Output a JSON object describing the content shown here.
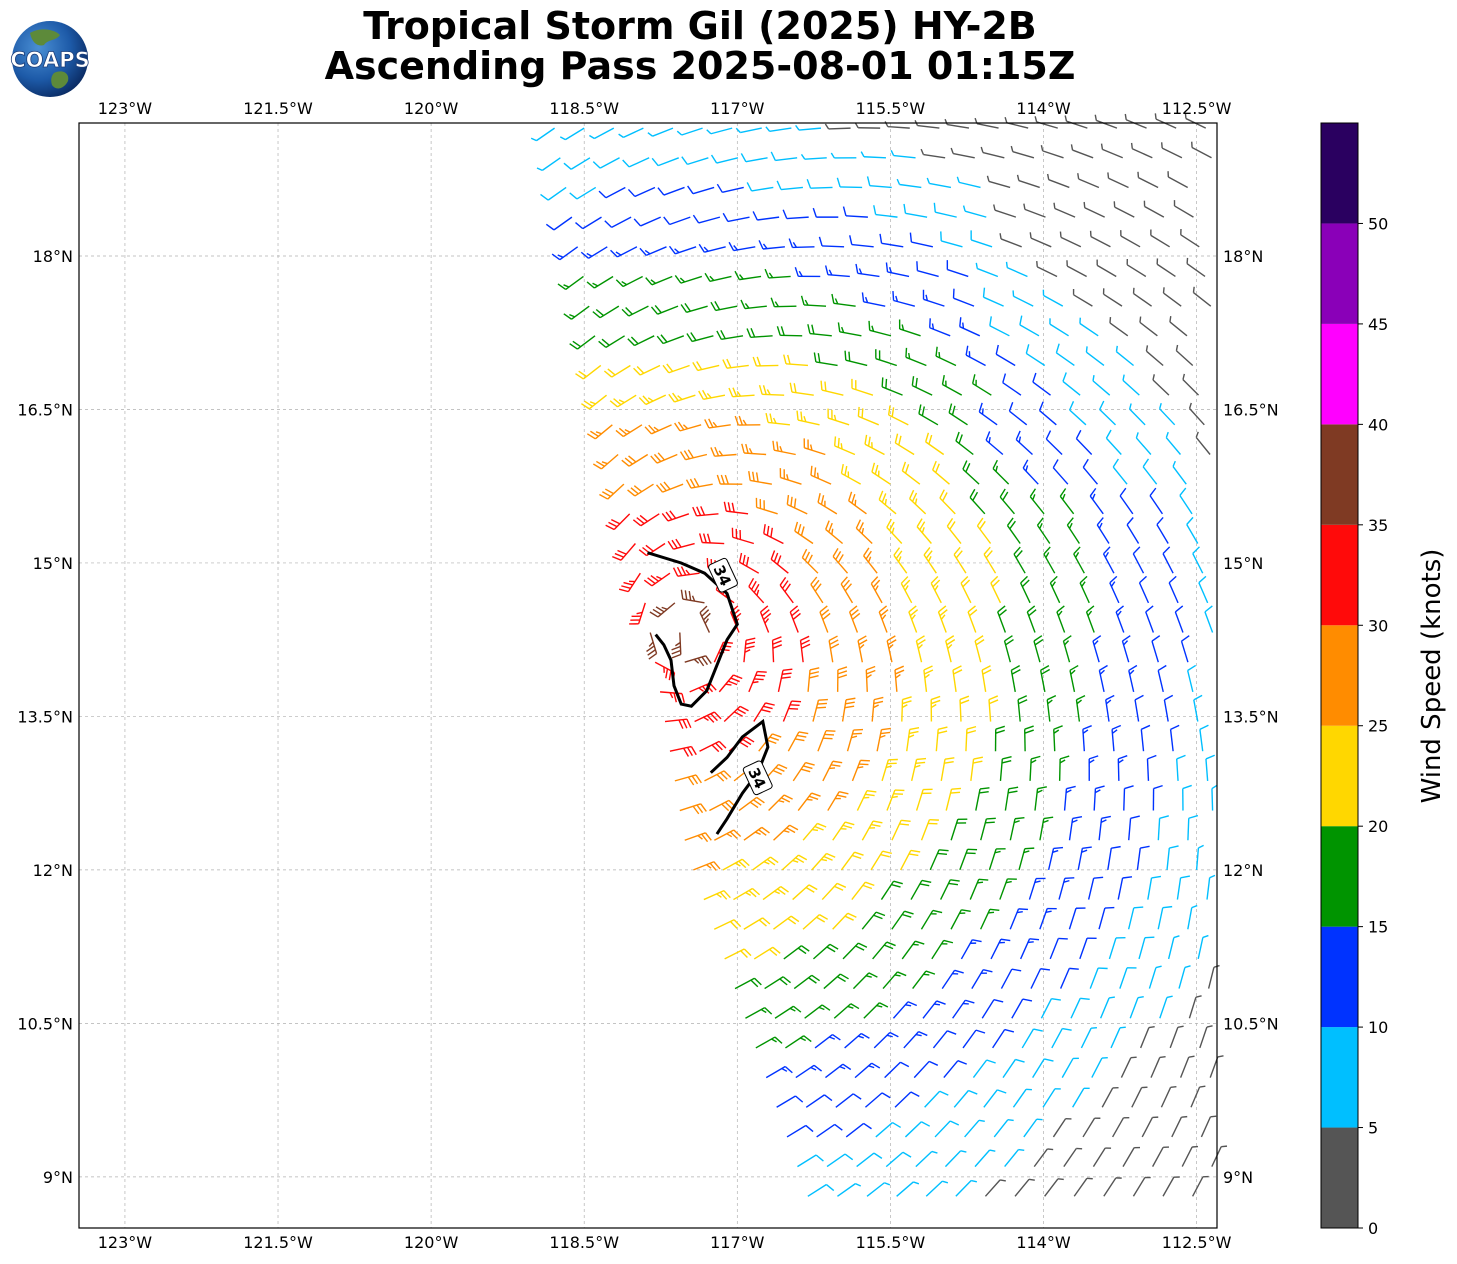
{
  "header": {
    "title_line1": "Tropical Storm Gil (2025) HY-2B",
    "title_line2": "Ascending Pass 2025-08-01 01:15Z"
  },
  "logo": {
    "text": "COAPS",
    "icon": "globe-icon"
  },
  "chart_data": {
    "type": "wind-barb-map",
    "title": "Tropical Storm Gil (2025) HY-2B Ascending Pass 2025-08-01 01:15Z",
    "xlim": [
      -123.45,
      -112.3
    ],
    "ylim": [
      8.5,
      19.3
    ],
    "x_ticks": [
      -123,
      -121.5,
      -120,
      -118.5,
      -117,
      -115.5,
      -114,
      -112.5
    ],
    "x_tick_labels": [
      "123°W",
      "121.5°W",
      "120°W",
      "118.5°W",
      "117°W",
      "115.5°W",
      "114°W",
      "112.5°W"
    ],
    "y_ticks": [
      9,
      10.5,
      12,
      13.5,
      15,
      16.5,
      18
    ],
    "y_tick_labels": [
      "9°N",
      "10.5°N",
      "12°N",
      "13.5°N",
      "15°N",
      "16.5°N",
      "18°N"
    ],
    "grid": true,
    "storm_center_approx": {
      "lon": -117.5,
      "lat": 14.3
    },
    "swath_west_edge": [
      {
        "lat": 19.3,
        "lon": -118.8
      },
      {
        "lat": 15.2,
        "lon": -118.0
      },
      {
        "lat": 12.2,
        "lon": -117.5
      },
      {
        "lat": 8.5,
        "lon": -116.2
      }
    ],
    "colorbar": {
      "label": "Wind Speed (knots)",
      "bounds": [
        0,
        5,
        10,
        15,
        20,
        25,
        30,
        35,
        40,
        45,
        50,
        55
      ],
      "tick_labels": [
        "0",
        "5",
        "10",
        "15",
        "20",
        "25",
        "30",
        "35",
        "40",
        "45",
        "50"
      ],
      "colors": [
        "#555555",
        "#00bfff",
        "#0033ff",
        "#009400",
        "#ffd700",
        "#ff8c00",
        "#ff0a0a",
        "#7f3a23",
        "#ff00ff",
        "#8a00b8",
        "#2a0060"
      ]
    },
    "contours": [
      {
        "level_label": "34",
        "color": "#000000",
        "points": [
          [
            -117.88,
            15.1
          ],
          [
            -117.55,
            15.0
          ],
          [
            -117.32,
            14.9
          ],
          [
            -117.1,
            14.7
          ],
          [
            -117.05,
            14.55
          ],
          [
            -117.0,
            14.4
          ],
          [
            -117.1,
            14.25
          ],
          [
            -117.2,
            14.0
          ],
          [
            -117.3,
            13.75
          ],
          [
            -117.45,
            13.6
          ],
          [
            -117.55,
            13.62
          ],
          [
            -117.62,
            13.8
          ],
          [
            -117.65,
            14.05
          ],
          [
            -117.72,
            14.2
          ],
          [
            -117.8,
            14.3
          ]
        ],
        "label_at": [
          -117.14,
          14.88
        ]
      },
      {
        "level_label": "34",
        "color": "#000000",
        "points": [
          [
            -117.26,
            12.95
          ],
          [
            -117.1,
            13.1
          ],
          [
            -116.95,
            13.3
          ],
          [
            -116.75,
            13.45
          ],
          [
            -116.7,
            13.2
          ],
          [
            -116.8,
            12.95
          ],
          [
            -116.95,
            12.75
          ],
          [
            -117.1,
            12.5
          ],
          [
            -117.2,
            12.35
          ]
        ],
        "label_at": [
          -116.8,
          12.9
        ]
      }
    ]
  }
}
